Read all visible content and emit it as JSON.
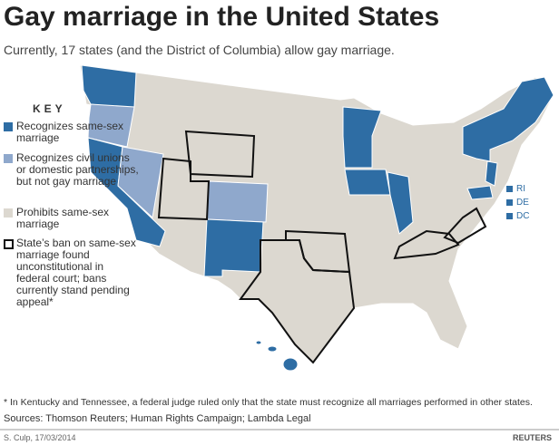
{
  "header": {
    "title": "Gay marriage in the United States",
    "subtitle": "Currently, 17 states (and the District of Columbia) allow gay marriage."
  },
  "key": {
    "title": "KEY",
    "items": [
      "Recognizes same-sex marriage",
      "Recognizes civil unions or domestic partnerships, but not gay marriage",
      "Prohibits same-sex marriage",
      "State’s ban on same-sex marriage found unconstitutional in federal court; bans currently stand pending appeal*"
    ]
  },
  "map": {
    "labels": [
      "RI",
      "DE",
      "DC"
    ]
  },
  "footer": {
    "note": "* In Kentucky and Tennessee, a federal judge ruled only that the state must recognize all marriages performed in other states.",
    "sources": "Sources: Thomson Reuters; Human Rights Campaign; Lambda Legal",
    "credit": "S. Culp, 17/03/2014",
    "logo": "REUTERS"
  }
}
